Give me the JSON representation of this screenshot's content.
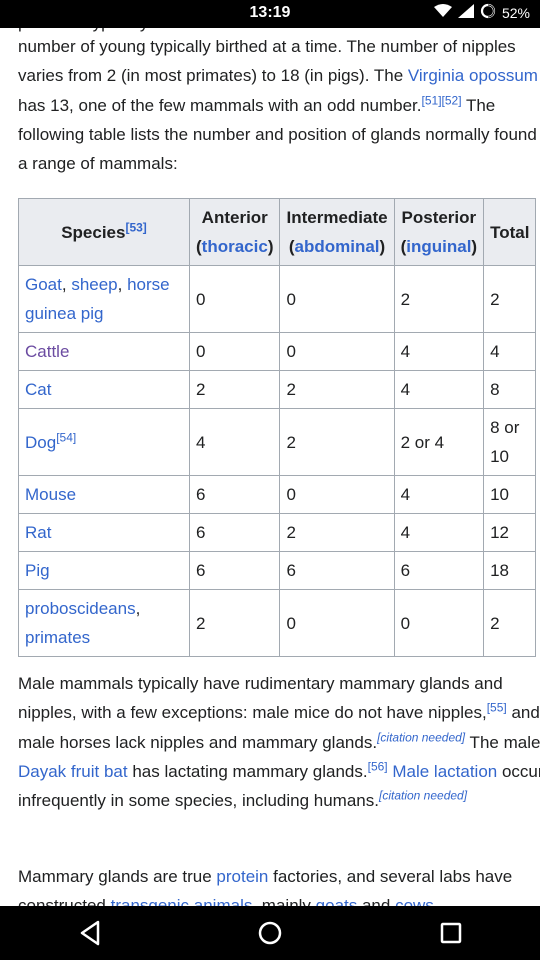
{
  "status_bar": {
    "time": "13:19",
    "battery": "52%",
    "icons": [
      "wifi-icon",
      "signal-icon",
      "battery-icon"
    ]
  },
  "article": {
    "partial_top": "primates typically ... ... ... ...",
    "para1": {
      "t1": "number of young typically birthed at a time. The number of nipples varies from 2 (in most primates) to 18 (in pigs). The ",
      "link_opossum": "Virginia opossum",
      "t2": " has 13, one of the few mammals with an odd number.",
      "ref51": "[51]",
      "ref52": "[52]",
      "t3": " The following table lists the number and position of glands normally found in a range of mammals:"
    },
    "table": {
      "headers": {
        "species": "Species",
        "species_ref": "[53]",
        "anterior": "Anterior",
        "anterior_link": "thoracic",
        "intermediate": "Intermediate",
        "intermediate_link": "abdominal",
        "posterior": "Posterior",
        "posterior_link": "inguinal",
        "total": "Total"
      },
      "rows": [
        {
          "species_parts": [
            "Goat",
            ", ",
            "sheep",
            ", ",
            "horse",
            " ",
            "guinea pig"
          ],
          "anterior": "0",
          "intermediate": "0",
          "posterior": "2",
          "total": "2"
        },
        {
          "species": "Cattle",
          "anterior": "0",
          "intermediate": "0",
          "posterior": "4",
          "total": "4"
        },
        {
          "species": "Cat",
          "anterior": "2",
          "intermediate": "2",
          "posterior": "4",
          "total": "8"
        },
        {
          "species": "Dog",
          "species_ref": "[54]",
          "anterior": "4",
          "intermediate": "2",
          "posterior": "2 or 4",
          "total": "8 or 10"
        },
        {
          "species": "Mouse",
          "anterior": "6",
          "intermediate": "0",
          "posterior": "4",
          "total": "10"
        },
        {
          "species": "Rat",
          "anterior": "6",
          "intermediate": "2",
          "posterior": "4",
          "total": "12"
        },
        {
          "species": "Pig",
          "anterior": "6",
          "intermediate": "6",
          "posterior": "6",
          "total": "18"
        },
        {
          "species": "proboscideans",
          "species_extra": "primates",
          "anterior": "2",
          "intermediate": "0",
          "posterior": "0",
          "total": "2"
        }
      ]
    },
    "para2": {
      "t1": "Male mammals typically have rudimentary mammary glands and nipples, with a few exceptions: male mice do not have nipples,",
      "ref55": "[55]",
      "t2": " and male horses lack nipples and mammary glands.",
      "cn1": "[citation needed]",
      "t3": " The male ",
      "link_bat": "Dayak fruit bat",
      "t4": " has lactating mammary glands.",
      "ref56": "[56]",
      "t5": " ",
      "link_lactation": "Male lactation",
      "t6": " occurs infrequently in some species, including humans.",
      "cn2": "[citation needed]"
    },
    "para3": {
      "t1": "Mammary glands are true ",
      "link_protein": "protein",
      "t2": " factories, and several labs have constructed ",
      "link_transgenic": "transgenic animals",
      "t3": ", mainly ",
      "link_goats": "goats",
      "t4": " and ",
      "link_cows": "cows"
    }
  },
  "nav_bar": {
    "buttons": [
      "back-button",
      "home-button",
      "recents-button"
    ]
  }
}
